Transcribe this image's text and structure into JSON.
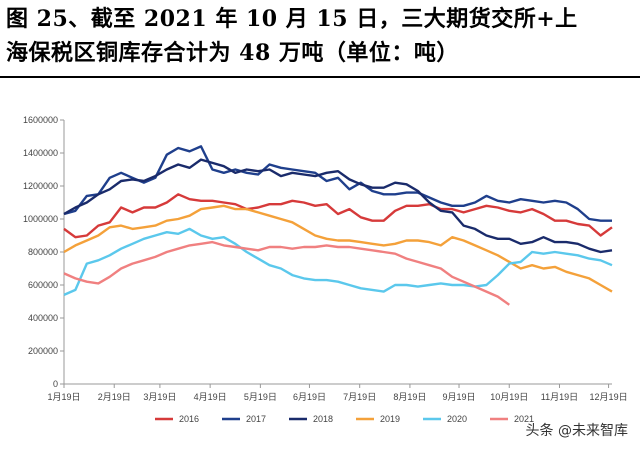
{
  "title": {
    "line1": "图 25、截至 2021 年 10 月 15 日，三大期货交所+上",
    "line2": "海保税区铜库存合计为 48 万吨（单位：吨）"
  },
  "watermark": "头条 @未来智库",
  "chart_data": {
    "type": "line",
    "ylim": [
      0,
      1600000
    ],
    "yticks": [
      0,
      200000,
      400000,
      600000,
      800000,
      1000000,
      1200000,
      1400000,
      1600000
    ],
    "ytick_labels": [
      "0",
      "200000",
      "400000",
      "600000",
      "800000",
      "1000000",
      "1200000",
      "1400000",
      "1600000"
    ],
    "xlim": [
      0,
      48
    ],
    "xticks": [
      0,
      4.4,
      8.4,
      12.8,
      17.2,
      21.5,
      25.9,
      30.3,
      34.6,
      39,
      43.4,
      47.7
    ],
    "xtick_labels": [
      "1月19日",
      "2月19日",
      "3月19日",
      "4月19日",
      "5月19日",
      "6月19日",
      "7月19日",
      "8月19日",
      "9月19日",
      "10月19日",
      "11月19日",
      "12月19日"
    ],
    "legend_position": "bottom",
    "series": [
      {
        "name": "2016",
        "color": "#d63a3a",
        "x": [
          0,
          1,
          2,
          3,
          4,
          5,
          6,
          7,
          8,
          9,
          10,
          11,
          12,
          13,
          14,
          15,
          16,
          17,
          18,
          19,
          20,
          21,
          22,
          23,
          24,
          25,
          26,
          27,
          28,
          29,
          30,
          31,
          32,
          33,
          34,
          35,
          36,
          37,
          38,
          39,
          40,
          41,
          42,
          43,
          44,
          45,
          46,
          47,
          48
        ],
        "y": [
          940000,
          890000,
          900000,
          960000,
          980000,
          1070000,
          1040000,
          1070000,
          1070000,
          1100000,
          1150000,
          1120000,
          1110000,
          1110000,
          1100000,
          1090000,
          1060000,
          1070000,
          1090000,
          1090000,
          1110000,
          1100000,
          1080000,
          1090000,
          1030000,
          1060000,
          1010000,
          990000,
          990000,
          1050000,
          1080000,
          1080000,
          1090000,
          1060000,
          1060000,
          1040000,
          1060000,
          1080000,
          1070000,
          1050000,
          1040000,
          1060000,
          1030000,
          990000,
          990000,
          970000,
          960000,
          900000,
          950000
        ]
      },
      {
        "name": "2017",
        "color": "#1f3f8c",
        "x": [
          0,
          1,
          2,
          3,
          4,
          5,
          6,
          7,
          8,
          9,
          10,
          11,
          12,
          13,
          14,
          15,
          16,
          17,
          18,
          19,
          20,
          21,
          22,
          23,
          24,
          25,
          26,
          27,
          28,
          29,
          30,
          31,
          32,
          33,
          34,
          35,
          36,
          37,
          38,
          39,
          40,
          41,
          42,
          43,
          44,
          45,
          46,
          47,
          48
        ],
        "y": [
          1030000,
          1050000,
          1140000,
          1150000,
          1250000,
          1280000,
          1250000,
          1220000,
          1250000,
          1390000,
          1430000,
          1410000,
          1440000,
          1300000,
          1280000,
          1300000,
          1280000,
          1270000,
          1330000,
          1310000,
          1300000,
          1290000,
          1280000,
          1230000,
          1250000,
          1180000,
          1220000,
          1170000,
          1150000,
          1150000,
          1160000,
          1160000,
          1130000,
          1100000,
          1080000,
          1080000,
          1100000,
          1140000,
          1110000,
          1100000,
          1120000,
          1110000,
          1100000,
          1110000,
          1100000,
          1060000,
          1000000,
          990000,
          990000
        ]
      },
      {
        "name": "2018",
        "color": "#1a2b6b",
        "x": [
          0,
          1,
          2,
          3,
          4,
          5,
          6,
          7,
          8,
          9,
          10,
          11,
          12,
          13,
          14,
          15,
          16,
          17,
          18,
          19,
          20,
          21,
          22,
          23,
          24,
          25,
          26,
          27,
          28,
          29,
          30,
          31,
          32,
          33,
          34,
          35,
          36,
          37,
          38,
          39,
          40,
          41,
          42,
          43,
          44,
          45,
          46,
          47,
          48
        ],
        "y": [
          1030000,
          1070000,
          1100000,
          1150000,
          1180000,
          1230000,
          1240000,
          1230000,
          1260000,
          1300000,
          1330000,
          1310000,
          1360000,
          1340000,
          1320000,
          1280000,
          1300000,
          1290000,
          1300000,
          1260000,
          1280000,
          1270000,
          1260000,
          1280000,
          1290000,
          1240000,
          1210000,
          1190000,
          1190000,
          1220000,
          1210000,
          1170000,
          1100000,
          1050000,
          1040000,
          960000,
          940000,
          900000,
          880000,
          880000,
          850000,
          860000,
          890000,
          860000,
          860000,
          850000,
          820000,
          800000,
          810000
        ]
      },
      {
        "name": "2019",
        "color": "#f4a13a",
        "x": [
          0,
          1,
          2,
          3,
          4,
          5,
          6,
          7,
          8,
          9,
          10,
          11,
          12,
          13,
          14,
          15,
          16,
          17,
          18,
          19,
          20,
          21,
          22,
          23,
          24,
          25,
          26,
          27,
          28,
          29,
          30,
          31,
          32,
          33,
          34,
          35,
          36,
          37,
          38,
          39,
          40,
          41,
          42,
          43,
          44,
          45,
          46,
          47,
          48
        ],
        "y": [
          800000,
          840000,
          870000,
          900000,
          950000,
          960000,
          940000,
          950000,
          960000,
          990000,
          1000000,
          1020000,
          1060000,
          1070000,
          1080000,
          1060000,
          1060000,
          1040000,
          1020000,
          1000000,
          980000,
          940000,
          900000,
          880000,
          870000,
          870000,
          860000,
          850000,
          840000,
          850000,
          870000,
          870000,
          860000,
          840000,
          890000,
          870000,
          840000,
          810000,
          780000,
          740000,
          700000,
          720000,
          700000,
          710000,
          680000,
          660000,
          640000,
          600000,
          560000
        ]
      },
      {
        "name": "2020",
        "color": "#5bc8ec",
        "x": [
          0,
          1,
          2,
          3,
          4,
          5,
          6,
          7,
          8,
          9,
          10,
          11,
          12,
          13,
          14,
          15,
          16,
          17,
          18,
          19,
          20,
          21,
          22,
          23,
          24,
          25,
          26,
          27,
          28,
          29,
          30,
          31,
          32,
          33,
          34,
          35,
          36,
          37,
          38,
          39,
          40,
          41,
          42,
          43,
          44,
          45,
          46,
          47,
          48
        ],
        "y": [
          540000,
          570000,
          730000,
          750000,
          780000,
          820000,
          850000,
          880000,
          900000,
          920000,
          910000,
          940000,
          900000,
          880000,
          890000,
          850000,
          800000,
          760000,
          720000,
          700000,
          660000,
          640000,
          630000,
          630000,
          620000,
          600000,
          580000,
          570000,
          560000,
          600000,
          600000,
          590000,
          600000,
          610000,
          600000,
          600000,
          590000,
          600000,
          660000,
          730000,
          740000,
          800000,
          790000,
          800000,
          790000,
          780000,
          760000,
          750000,
          720000
        ]
      },
      {
        "name": "2021",
        "color": "#f08080",
        "x": [
          0,
          1,
          2,
          3,
          4,
          5,
          6,
          7,
          8,
          9,
          10,
          11,
          12,
          13,
          14,
          15,
          16,
          17,
          18,
          19,
          20,
          21,
          22,
          23,
          24,
          25,
          26,
          27,
          28,
          29,
          30,
          31,
          32,
          33,
          34,
          35,
          36,
          37,
          38,
          39
        ],
        "y": [
          670000,
          640000,
          620000,
          610000,
          650000,
          700000,
          730000,
          750000,
          770000,
          800000,
          820000,
          840000,
          850000,
          860000,
          840000,
          830000,
          820000,
          810000,
          830000,
          830000,
          820000,
          830000,
          830000,
          840000,
          830000,
          830000,
          820000,
          810000,
          800000,
          790000,
          760000,
          740000,
          720000,
          700000,
          650000,
          620000,
          590000,
          560000,
          530000,
          480000
        ]
      }
    ]
  }
}
